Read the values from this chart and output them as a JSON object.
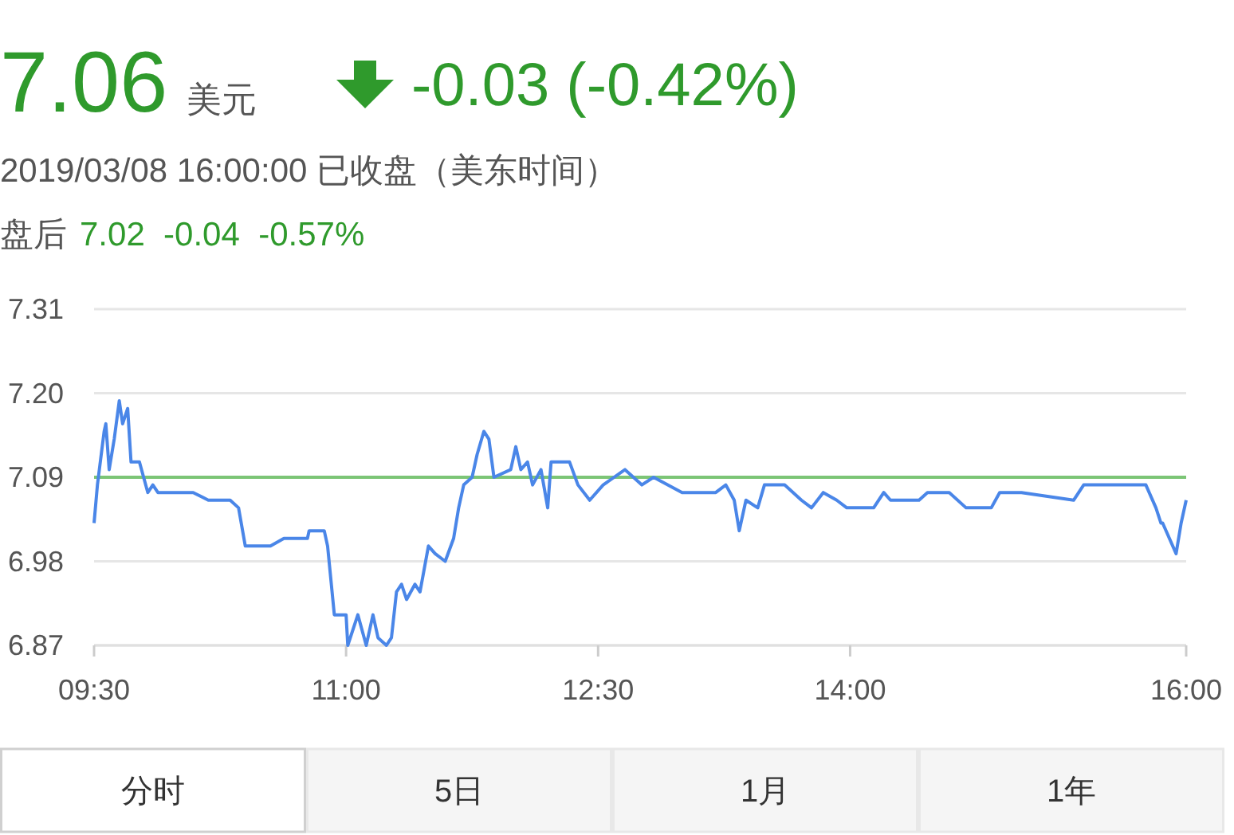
{
  "chart_data": {
    "type": "line",
    "title": "7.06",
    "annotations": [
      "美元",
      "-0.03 (-0.42%)",
      "2019/03/08 16:00:00  已收盘（美东时间）",
      "盘后",
      "7.02  -0.04  -0.57%",
      "分时",
      "5日",
      "1月",
      "1年"
    ],
    "x": [
      9.5,
      9.52,
      9.56,
      9.57,
      9.59,
      9.62,
      9.65,
      9.67,
      9.7,
      9.72,
      9.77,
      9.82,
      9.85,
      9.88,
      10.03,
      10.09,
      10.18,
      10.31,
      10.36,
      10.4,
      10.49,
      10.55,
      10.63,
      10.77,
      10.78,
      10.87,
      10.89,
      10.93,
      11.0,
      11.01,
      11.07,
      11.12,
      11.16,
      11.19,
      11.24,
      11.27,
      11.3,
      11.33,
      11.36,
      11.41,
      11.44,
      11.49,
      11.53,
      11.59,
      11.64,
      11.67,
      11.7,
      11.75,
      11.78,
      11.82,
      11.85,
      11.88,
      11.98,
      12.01,
      12.04,
      12.08,
      12.11,
      12.16,
      12.2,
      12.22,
      12.33,
      12.38,
      12.45,
      12.53,
      12.66,
      12.76,
      12.83,
      13.0,
      13.2,
      13.26,
      13.31,
      13.34,
      13.38,
      13.45,
      13.49,
      13.61,
      13.71,
      13.77,
      13.84,
      13.92,
      13.98,
      14.14,
      14.2,
      14.24,
      14.41,
      14.46,
      14.59,
      14.69,
      14.84,
      14.89,
      15.02,
      15.33,
      15.39,
      15.76,
      15.82,
      15.85,
      15.86,
      15.94,
      15.97,
      16.0
    ],
    "series": [
      {
        "color": "#4a86e8",
        "values": [
          7.03,
          7.08,
          7.15,
          7.16,
          7.1,
          7.14,
          7.19,
          7.16,
          7.18,
          7.11,
          7.11,
          7.07,
          7.08,
          7.07,
          7.07,
          7.07,
          7.06,
          7.06,
          7.05,
          7.0,
          7.0,
          7.0,
          7.01,
          7.01,
          7.02,
          7.02,
          7.0,
          6.91,
          6.91,
          6.87,
          6.91,
          6.87,
          6.91,
          6.88,
          6.87,
          6.88,
          6.94,
          6.95,
          6.93,
          6.95,
          6.94,
          7.0,
          6.99,
          6.98,
          7.01,
          7.05,
          7.08,
          7.09,
          7.12,
          7.15,
          7.14,
          7.09,
          7.1,
          7.13,
          7.1,
          7.11,
          7.08,
          7.1,
          7.05,
          7.11,
          7.11,
          7.08,
          7.06,
          7.08,
          7.1,
          7.08,
          7.09,
          7.07,
          7.07,
          7.08,
          7.06,
          7.02,
          7.06,
          7.05,
          7.08,
          7.08,
          7.06,
          7.05,
          7.07,
          7.06,
          7.05,
          7.05,
          7.07,
          7.06,
          7.06,
          7.07,
          7.07,
          7.05,
          7.05,
          7.07,
          7.07,
          7.06,
          7.08,
          7.08,
          7.05,
          7.03,
          7.03,
          6.99,
          7.03,
          7.06
        ]
      }
    ],
    "xlim": [
      9.5,
      16.0
    ],
    "xticks": [
      {
        "value": 9.5,
        "label": "09:30"
      },
      {
        "value": 11,
        "label": "11:00"
      },
      {
        "value": 12.5,
        "label": "12:30"
      },
      {
        "value": 14,
        "label": "14:00"
      },
      {
        "value": 16,
        "label": "16:00"
      }
    ],
    "ylim": [
      6.87,
      7.31
    ],
    "yticks": [
      7.31,
      {
        "value": 7.2,
        "label": "7.20"
      },
      7.09,
      6.98,
      6.87
    ],
    "grid": "y",
    "ref_lines": [
      {
        "axis": "y",
        "value": 7.09,
        "color": "#7cc576"
      }
    ]
  }
}
